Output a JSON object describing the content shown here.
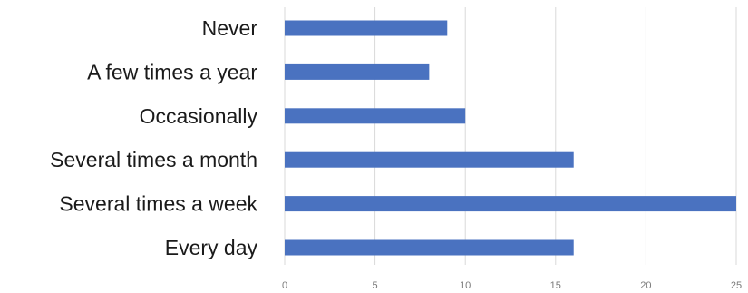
{
  "chart_data": {
    "type": "bar",
    "orientation": "horizontal",
    "categories": [
      "Never",
      "A few times a year",
      "Occasionally",
      "Several times a month",
      "Several times a week",
      "Every day"
    ],
    "values": [
      9,
      8,
      10,
      16,
      25,
      16
    ],
    "xlim": [
      0,
      25
    ],
    "xticks": [
      0,
      5,
      10,
      15,
      20,
      25
    ],
    "grid": true,
    "bar_color": "#4a72c0",
    "title": "",
    "xlabel": "",
    "ylabel": ""
  }
}
